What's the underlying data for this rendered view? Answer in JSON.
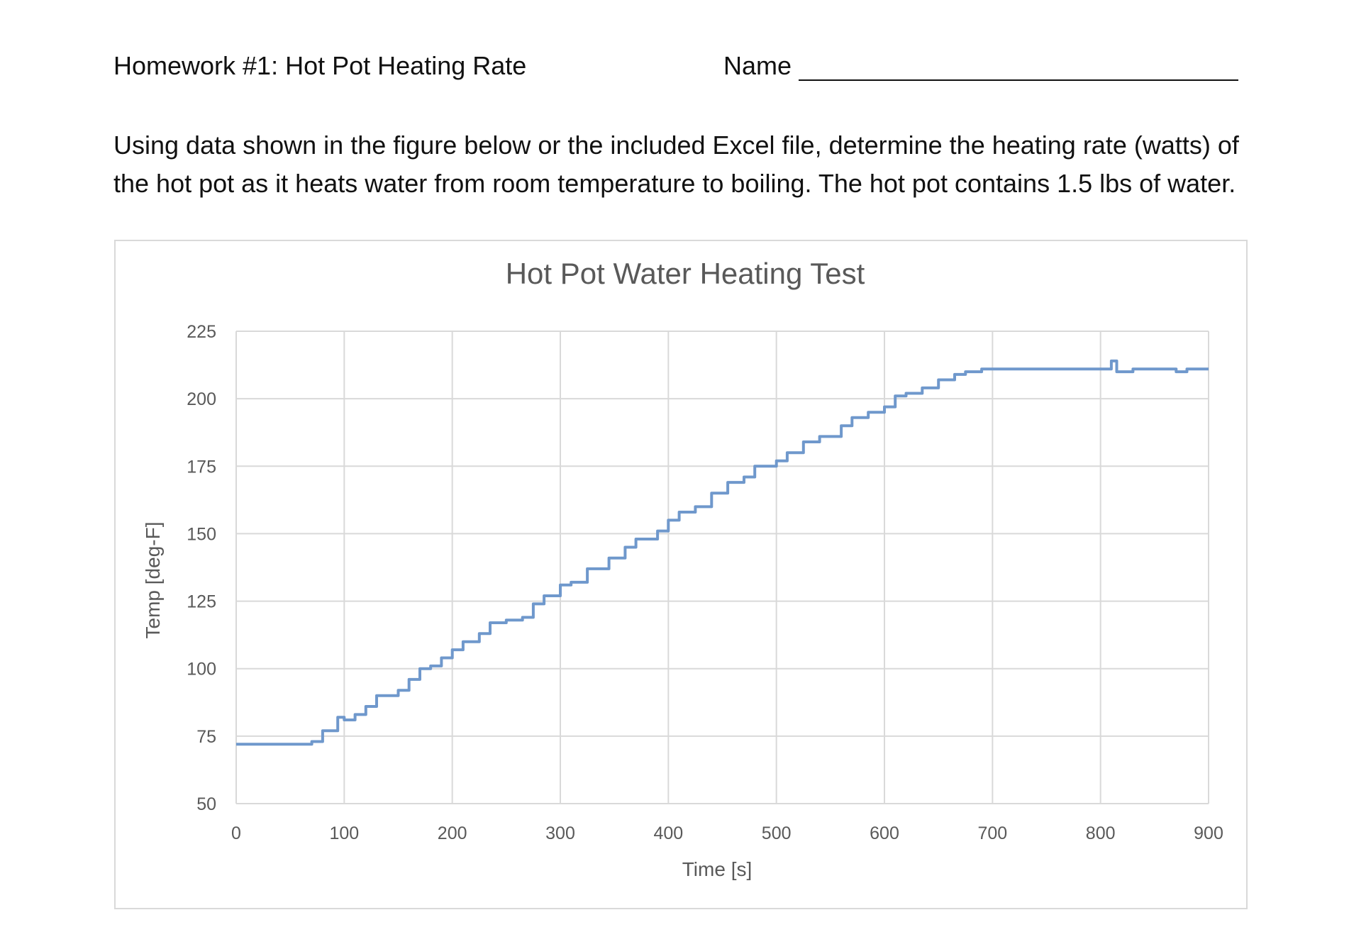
{
  "document": {
    "title": "Homework #1:  Hot Pot Heating Rate",
    "name_label": "Name",
    "instructions": "Using data shown in the figure below or the included Excel file, determine the heating rate (watts) of the hot pot as it heats water from room temperature to boiling.  The hot pot contains 1.5 lbs of water."
  },
  "colors": {
    "series": "#6f98cc",
    "grid": "#d9d9d9",
    "text": "#595959"
  },
  "chart_data": {
    "type": "line",
    "title": "Hot Pot Water Heating Test",
    "xlabel": "Time [s]",
    "ylabel": "Temp [deg-F]",
    "xlim": [
      0,
      900
    ],
    "ylim": [
      50,
      225
    ],
    "xticks": [
      0,
      100,
      200,
      300,
      400,
      500,
      600,
      700,
      800,
      900
    ],
    "yticks": [
      50,
      75,
      100,
      125,
      150,
      175,
      200,
      225
    ],
    "grid": true,
    "legend": "none",
    "series": [
      {
        "x": [
          0,
          70,
          70,
          80,
          80,
          94,
          94,
          100,
          100,
          110,
          110,
          120,
          120,
          130,
          130,
          150,
          150,
          160,
          160,
          170,
          170,
          180,
          180,
          190,
          190,
          200,
          200,
          210,
          210,
          225,
          225,
          235,
          235,
          250,
          250,
          265,
          265,
          275,
          275,
          285,
          285,
          300,
          300,
          310,
          310,
          325,
          325,
          345,
          345,
          360,
          360,
          370,
          370,
          390,
          390,
          400,
          400,
          410,
          410,
          425,
          425,
          440,
          440,
          455,
          455,
          470,
          470,
          480,
          480,
          500,
          500,
          510,
          510,
          525,
          525,
          540,
          540,
          560,
          560,
          570,
          570,
          585,
          585,
          600,
          600,
          610,
          610,
          620,
          620,
          635,
          635,
          650,
          650,
          665,
          665,
          675,
          675,
          690,
          690,
          770,
          770,
          810,
          810,
          815,
          815,
          830,
          830,
          870,
          870,
          880,
          880,
          900
        ],
        "y": [
          72,
          72,
          73,
          73,
          77,
          77,
          82,
          82,
          81,
          81,
          83,
          83,
          86,
          86,
          90,
          90,
          92,
          92,
          96,
          96,
          100,
          100,
          101,
          101,
          104,
          104,
          107,
          107,
          110,
          110,
          113,
          113,
          117,
          117,
          118,
          118,
          119,
          119,
          124,
          124,
          127,
          127,
          131,
          131,
          132,
          132,
          137,
          137,
          141,
          141,
          145,
          145,
          148,
          148,
          151,
          151,
          155,
          155,
          158,
          158,
          160,
          160,
          165,
          165,
          169,
          169,
          171,
          171,
          175,
          175,
          177,
          177,
          180,
          180,
          184,
          184,
          186,
          186,
          190,
          190,
          193,
          193,
          195,
          195,
          197,
          197,
          201,
          201,
          202,
          202,
          204,
          204,
          207,
          207,
          209,
          209,
          210,
          210,
          211,
          211,
          211,
          211,
          214,
          214,
          210,
          210,
          211,
          211,
          210,
          210,
          211,
          211
        ]
      }
    ]
  }
}
